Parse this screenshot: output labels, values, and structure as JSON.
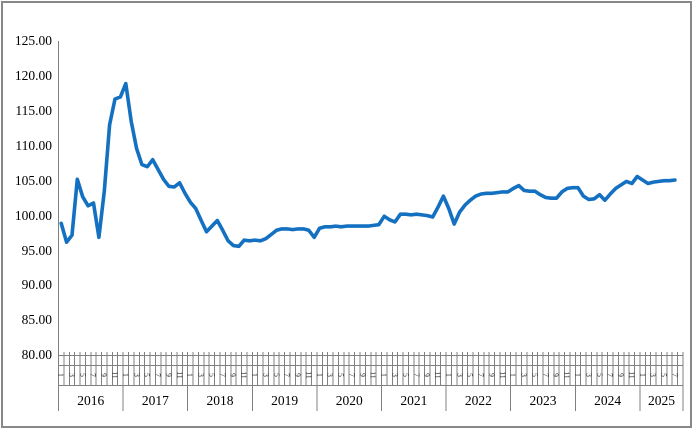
{
  "chart_data": {
    "type": "line",
    "title": "",
    "legend": false,
    "grid": false,
    "x_axis": {
      "unit": "month",
      "month_label_interval": "odd months (1,3,5,7,9,11) rotated 90°",
      "years": [
        {
          "label": "2016",
          "month_cells": 12
        },
        {
          "label": "2017",
          "month_cells": 12
        },
        {
          "label": "2018",
          "month_cells": 12
        },
        {
          "label": "2019",
          "month_cells": 12
        },
        {
          "label": "2020",
          "month_cells": 12
        },
        {
          "label": "2021",
          "month_cells": 12
        },
        {
          "label": "2022",
          "month_cells": 12
        },
        {
          "label": "2023",
          "month_cells": 12
        },
        {
          "label": "2024",
          "month_cells": 12
        },
        {
          "label": "2025",
          "month_cells": 8
        }
      ],
      "data_start": "2016-01",
      "data_end": "2025-07"
    },
    "y_axis": {
      "min": 80,
      "max": 125,
      "step": 5,
      "tick_labels": [
        "125.00",
        "120.00",
        "115.00",
        "110.00",
        "105.00",
        "100.00",
        "95.00",
        "90.00",
        "85.00",
        "80.00"
      ]
    },
    "series": [
      {
        "name": "",
        "color": "#1470C0",
        "values": [
          98.9,
          96.2,
          97.2,
          105.2,
          102.7,
          101.4,
          101.8,
          96.9,
          103.5,
          113.0,
          116.7,
          117.0,
          118.9,
          113.5,
          109.6,
          107.3,
          107.0,
          108.0,
          106.6,
          105.2,
          104.2,
          104.1,
          104.7,
          103.2,
          101.9,
          101.0,
          99.3,
          97.7,
          98.5,
          99.3,
          97.9,
          96.4,
          95.7,
          95.6,
          96.5,
          96.4,
          96.5,
          96.4,
          96.7,
          97.3,
          97.9,
          98.1,
          98.1,
          98.0,
          98.1,
          98.1,
          97.9,
          96.9,
          98.2,
          98.4,
          98.4,
          98.5,
          98.4,
          98.5,
          98.5,
          98.5,
          98.5,
          98.5,
          98.6,
          98.7,
          99.9,
          99.4,
          99.1,
          100.2,
          100.2,
          100.1,
          100.2,
          100.1,
          100.0,
          99.8,
          101.2,
          102.8,
          101.0,
          98.8,
          100.5,
          101.5,
          102.2,
          102.8,
          103.1,
          103.2,
          103.2,
          103.3,
          103.4,
          103.4,
          103.9,
          104.3,
          103.6,
          103.5,
          103.5,
          103.0,
          102.6,
          102.5,
          102.5,
          103.4,
          103.9,
          104.0,
          104.0,
          102.8,
          102.3,
          102.4,
          103.0,
          102.2,
          103.1,
          103.9,
          104.4,
          104.9,
          104.6,
          105.6,
          105.1,
          104.6,
          104.8,
          104.9,
          105.0,
          105.0,
          105.1
        ]
      }
    ],
    "colors": {
      "series_line": "#1470C0",
      "axis_line": "#808080",
      "text": "#000000",
      "frame_border": "#888888"
    }
  }
}
